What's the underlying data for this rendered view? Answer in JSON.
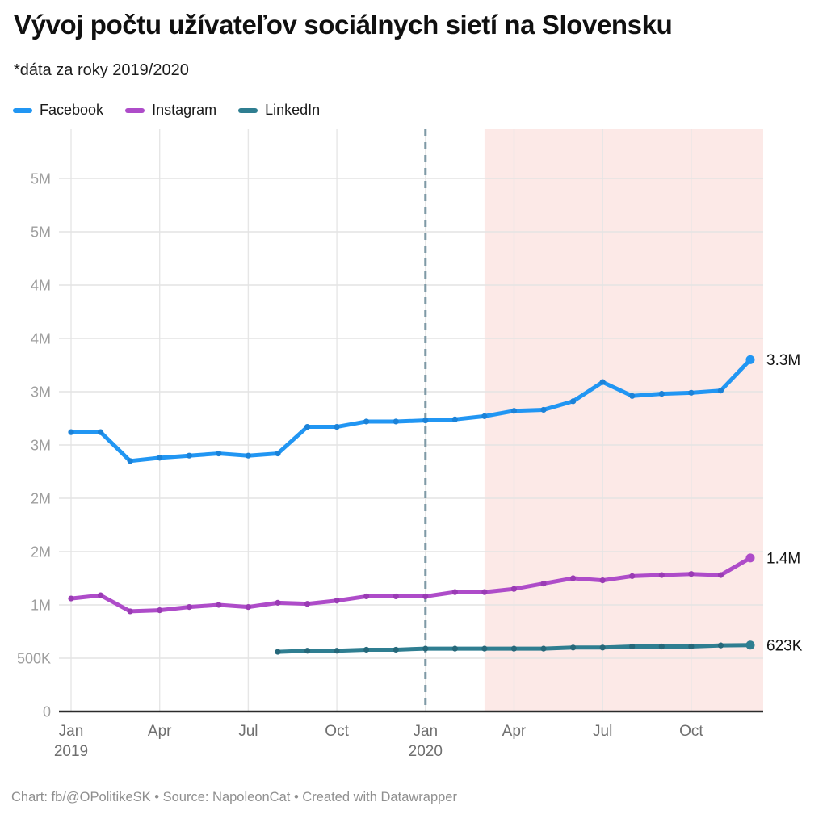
{
  "header": {
    "title": "Vývoj počtu užívateľov sociálnych sietí na Slovensku",
    "subtitle": "*dáta za roky 2019/2020"
  },
  "legend": {
    "items": [
      {
        "label": "Facebook",
        "color": "#2196F3"
      },
      {
        "label": "Instagram",
        "color": "#AE4CC9"
      },
      {
        "label": "LinkedIn",
        "color": "#2F7E91"
      }
    ]
  },
  "footer": {
    "text": "Chart: fb/@OPolitikeSK • Source: NapoleonCat • Created with Datawrapper"
  },
  "chart_data": {
    "type": "line",
    "title": "Vývoj počtu užívateľov sociálnych sietí na Slovensku",
    "subtitle": "*dáta za roky 2019/2020",
    "unit": "users",
    "ylim": [
      0,
      5
    ],
    "grid": true,
    "legend_position": "top-left",
    "x": [
      "Jan 2019",
      "Feb 2019",
      "Mar 2019",
      "Apr 2019",
      "May 2019",
      "Jun 2019",
      "Jul 2019",
      "Aug 2019",
      "Sep 2019",
      "Oct 2019",
      "Nov 2019",
      "Dec 2019",
      "Jan 2020",
      "Feb 2020",
      "Mar 2020",
      "Apr 2020",
      "May 2020",
      "Jun 2020",
      "Jul 2020",
      "Aug 2020",
      "Sep 2020",
      "Oct 2020",
      "Nov 2020",
      "Dec 2020"
    ],
    "series": [
      {
        "name": "Facebook",
        "color": "#2196F3",
        "point_color": "#1B82D8",
        "end_label": "3.3M",
        "values": [
          2.62,
          2.62,
          2.35,
          2.38,
          2.4,
          2.42,
          2.4,
          2.42,
          2.67,
          2.67,
          2.72,
          2.72,
          2.73,
          2.74,
          2.77,
          2.82,
          2.83,
          2.91,
          3.09,
          2.96,
          2.98,
          2.99,
          3.01,
          3.3
        ]
      },
      {
        "name": "Instagram",
        "color": "#AE4CC9",
        "point_color": "#9A3BB4",
        "end_label": "1.4M",
        "values": [
          1.06,
          1.09,
          0.94,
          0.95,
          0.98,
          1.0,
          0.98,
          1.02,
          1.01,
          1.04,
          1.08,
          1.08,
          1.08,
          1.12,
          1.12,
          1.15,
          1.2,
          1.25,
          1.23,
          1.27,
          1.28,
          1.29,
          1.28,
          1.44
        ]
      },
      {
        "name": "LinkedIn",
        "color": "#2F7E91",
        "point_color": "#26687A",
        "end_label": "623K",
        "values": [
          null,
          null,
          null,
          null,
          null,
          null,
          null,
          0.56,
          0.57,
          0.57,
          0.58,
          0.58,
          0.59,
          0.59,
          0.59,
          0.59,
          0.59,
          0.6,
          0.6,
          0.61,
          0.61,
          0.61,
          0.62,
          0.623
        ]
      }
    ],
    "y_ticks": [
      {
        "value": 5.0,
        "label": "5M"
      },
      {
        "value": 4.5,
        "label": "5M"
      },
      {
        "value": 4.0,
        "label": "4M"
      },
      {
        "value": 3.5,
        "label": "4M"
      },
      {
        "value": 3.0,
        "label": "3M"
      },
      {
        "value": 2.5,
        "label": "3M"
      },
      {
        "value": 2.0,
        "label": "2M"
      },
      {
        "value": 1.5,
        "label": "2M"
      },
      {
        "value": 1.0,
        "label": "1M"
      },
      {
        "value": 0.5,
        "label": "500K"
      },
      {
        "value": 0,
        "label": "0"
      }
    ],
    "x_ticks": [
      {
        "index": 0,
        "label": "Jan",
        "sublabel": "2019"
      },
      {
        "index": 3,
        "label": "Apr"
      },
      {
        "index": 6,
        "label": "Jul"
      },
      {
        "index": 9,
        "label": "Oct"
      },
      {
        "index": 12,
        "label": "Jan",
        "sublabel": "2020"
      },
      {
        "index": 15,
        "label": "Apr"
      },
      {
        "index": 18,
        "label": "Jul"
      },
      {
        "index": 21,
        "label": "Oct"
      }
    ],
    "highlight_region": {
      "from_index": 14,
      "from_month": "Mar 2020",
      "to_month": "Dec 2020",
      "color": "#FCE9E7"
    },
    "reference_line": {
      "at_index": 12,
      "at_month": "Jan 2020",
      "style": "dashed",
      "color": "#7E99A6"
    }
  }
}
